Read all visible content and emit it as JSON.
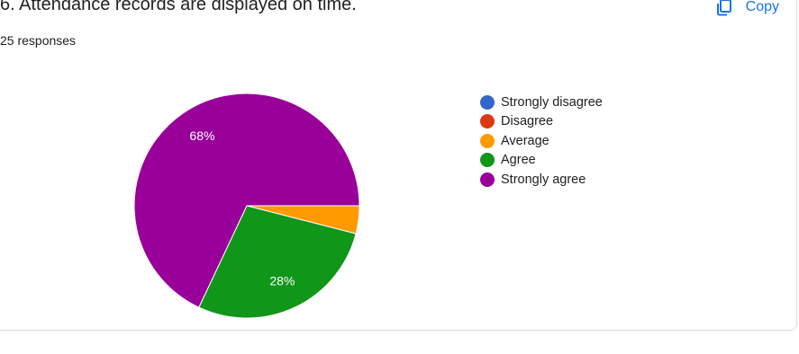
{
  "question": {
    "title": "6. Attendance records are displayed on time.",
    "responses": "25 responses"
  },
  "toolbar": {
    "copy_label": "Copy",
    "copy_icon": "copy-icon"
  },
  "colors": {
    "accent": "#1a73e8",
    "card_border": "#dadce0"
  },
  "chart_data": {
    "type": "pie",
    "categories": [
      "Strongly disagree",
      "Disagree",
      "Average",
      "Agree",
      "Strongly agree"
    ],
    "values": [
      0,
      0,
      4,
      28,
      68
    ],
    "value_unit": "%",
    "data_labels": [
      "",
      "",
      "",
      "28%",
      "68%"
    ],
    "colors": [
      "#3366cc",
      "#dc3912",
      "#ff9900",
      "#109618",
      "#990099"
    ],
    "legend_position": "right",
    "title": ""
  }
}
